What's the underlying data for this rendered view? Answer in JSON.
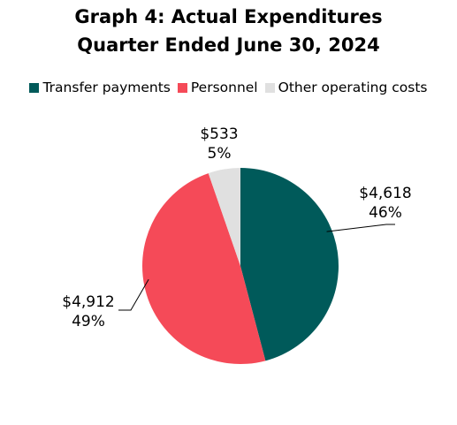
{
  "chart_data": {
    "type": "pie",
    "title": "Graph 4: Actual Expenditures",
    "subtitle": "Quarter Ended June 30, 2024",
    "legend_position": "top",
    "slices": [
      {
        "name": "Transfer payments",
        "value": 4618,
        "value_label": "$4,618",
        "percent_label": "46%",
        "color": "#005a5a"
      },
      {
        "name": "Personnel",
        "value": 4912,
        "value_label": "$4,912",
        "percent_label": "49%",
        "color": "#f54a58"
      },
      {
        "name": "Other operating costs",
        "value": 533,
        "value_label": "$533",
        "percent_label": "5%",
        "color": "#e0e0e0"
      }
    ]
  }
}
